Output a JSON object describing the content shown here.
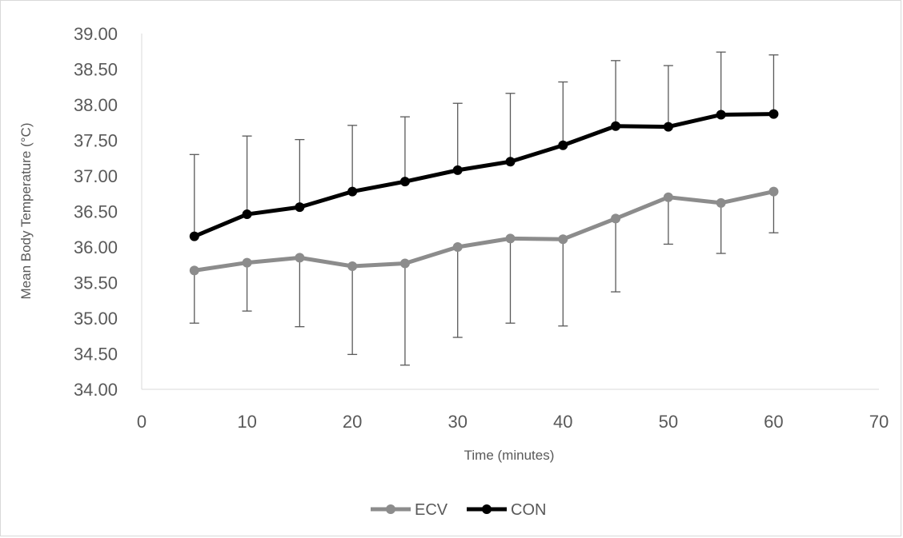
{
  "chart_data": {
    "type": "line",
    "title": "",
    "xlabel": "Time (minutes)",
    "ylabel": "Mean Body Temperature (°C)",
    "xlim": [
      0,
      70
    ],
    "ylim": [
      34.0,
      39.0
    ],
    "x_ticks": [
      "0",
      "10",
      "20",
      "30",
      "40",
      "50",
      "60",
      "70"
    ],
    "y_ticks": [
      "34.00",
      "34.50",
      "35.00",
      "35.50",
      "36.00",
      "36.50",
      "37.00",
      "37.50",
      "38.00",
      "38.50",
      "39.00"
    ],
    "grid": false,
    "legend": "bottom",
    "error_bars": "upper for CON, lower for ECV",
    "x": [
      5,
      10,
      15,
      20,
      25,
      30,
      35,
      40,
      45,
      50,
      55,
      60
    ],
    "series": [
      {
        "name": "ECV",
        "color": "#8c8c8c",
        "values": [
          35.67,
          35.78,
          35.85,
          35.73,
          35.77,
          36.0,
          36.12,
          36.11,
          36.4,
          36.7,
          36.62,
          36.78
        ],
        "error_low": [
          34.93,
          35.1,
          34.88,
          34.49,
          34.34,
          34.73,
          34.93,
          34.89,
          35.37,
          36.04,
          35.91,
          36.2
        ]
      },
      {
        "name": "CON",
        "color": "#000000",
        "values": [
          36.15,
          36.46,
          36.56,
          36.78,
          36.92,
          37.08,
          37.2,
          37.43,
          37.7,
          37.69,
          37.86,
          37.87
        ],
        "error_high": [
          37.3,
          37.56,
          37.51,
          37.71,
          37.83,
          38.02,
          38.16,
          38.32,
          38.62,
          38.55,
          38.74,
          38.7
        ]
      }
    ]
  }
}
